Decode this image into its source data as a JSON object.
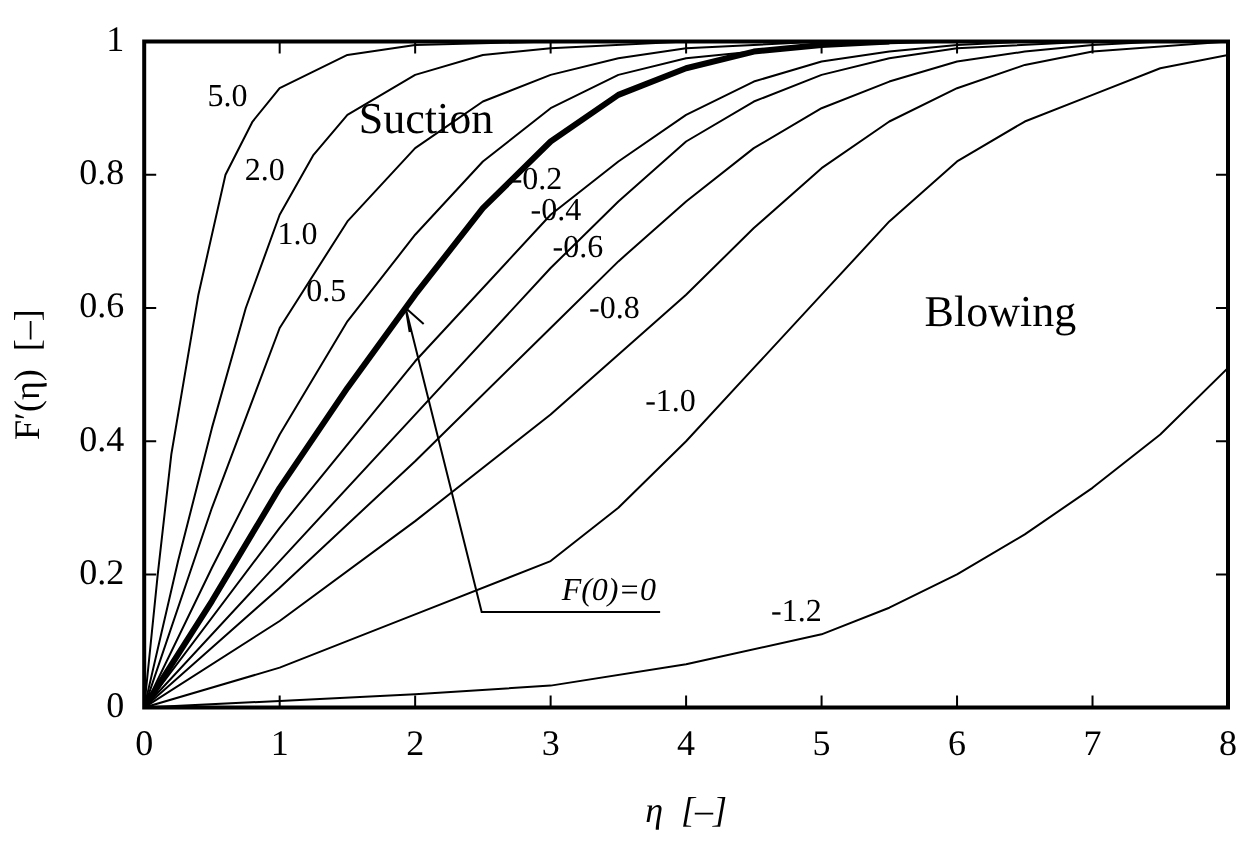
{
  "chart_data": {
    "type": "line",
    "xlabel": "η  [–]",
    "ylabel": "F′(η)  [–]",
    "xlim": [
      0,
      8
    ],
    "ylim": [
      0,
      1
    ],
    "xticks": [
      0,
      1,
      2,
      3,
      4,
      5,
      6,
      7,
      8
    ],
    "yticks": [
      0,
      0.2,
      0.4,
      0.6,
      0.8,
      1
    ],
    "grid": false,
    "legend": false,
    "marker": "none",
    "line_style": "solid",
    "series": [
      {
        "name": "5.0",
        "color": "#000000",
        "x": [
          0,
          0.1,
          0.2,
          0.4,
          0.6,
          0.8,
          1,
          1.5,
          2,
          3
        ],
        "values": [
          0,
          0.2,
          0.38,
          0.62,
          0.8,
          0.88,
          0.93,
          0.98,
          0.995,
          1
        ]
      },
      {
        "name": "2.0",
        "color": "#000000",
        "x": [
          0,
          0.25,
          0.5,
          0.75,
          1,
          1.25,
          1.5,
          2,
          2.5,
          3,
          4
        ],
        "values": [
          0,
          0.22,
          0.42,
          0.6,
          0.74,
          0.83,
          0.89,
          0.95,
          0.98,
          0.99,
          1
        ]
      },
      {
        "name": "1.0",
        "color": "#000000",
        "x": [
          0,
          0.5,
          1,
          1.5,
          2,
          2.5,
          3,
          3.5,
          4,
          5
        ],
        "values": [
          0,
          0.3,
          0.57,
          0.73,
          0.84,
          0.91,
          0.95,
          0.975,
          0.99,
          1
        ]
      },
      {
        "name": "0.5",
        "color": "#000000",
        "x": [
          0,
          0.5,
          1,
          1.5,
          2,
          2.5,
          3,
          3.5,
          4,
          5,
          6
        ],
        "values": [
          0,
          0.21,
          0.41,
          0.58,
          0.71,
          0.82,
          0.9,
          0.95,
          0.975,
          0.995,
          1
        ]
      },
      {
        "color": "#000000",
        "x": [
          0,
          0.5,
          1,
          1.5,
          2,
          2.5,
          3,
          3.5,
          4,
          4.5,
          5,
          5.5
        ],
        "values": [
          0,
          0.16,
          0.33,
          0.48,
          0.62,
          0.75,
          0.85,
          0.92,
          0.96,
          0.985,
          0.995,
          1
        ]
      },
      {
        "name": "-0.2",
        "color": "#000000",
        "x": [
          0,
          1,
          2,
          3,
          3.5,
          4,
          4.5,
          5,
          5.5,
          6,
          6.5
        ],
        "values": [
          0,
          0.27,
          0.52,
          0.74,
          0.82,
          0.89,
          0.94,
          0.97,
          0.985,
          0.995,
          1
        ]
      },
      {
        "name": "-0.4",
        "color": "#000000",
        "x": [
          0,
          1,
          2,
          3,
          3.5,
          4,
          4.5,
          5,
          5.5,
          6,
          7
        ],
        "values": [
          0,
          0.22,
          0.44,
          0.66,
          0.76,
          0.85,
          0.91,
          0.95,
          0.975,
          0.99,
          1
        ]
      },
      {
        "name": "-0.6",
        "color": "#000000",
        "x": [
          0,
          1,
          2,
          3,
          3.5,
          4,
          4.5,
          5,
          5.5,
          6,
          6.5,
          7,
          7.5
        ],
        "values": [
          0,
          0.18,
          0.37,
          0.57,
          0.67,
          0.76,
          0.84,
          0.9,
          0.94,
          0.97,
          0.985,
          0.995,
          1
        ]
      },
      {
        "name": "-0.8",
        "color": "#000000",
        "x": [
          0,
          1,
          2,
          3,
          4,
          4.5,
          5,
          5.5,
          6,
          6.5,
          7,
          8
        ],
        "values": [
          0,
          0.13,
          0.28,
          0.44,
          0.62,
          0.72,
          0.81,
          0.88,
          0.93,
          0.965,
          0.985,
          1
        ]
      },
      {
        "name": "-1.0",
        "color": "#000000",
        "x": [
          0,
          1,
          2,
          3,
          3.5,
          4,
          4.5,
          5,
          5.5,
          6,
          6.5,
          7,
          7.5,
          8
        ],
        "values": [
          0,
          0.06,
          0.14,
          0.22,
          0.3,
          0.4,
          0.51,
          0.62,
          0.73,
          0.82,
          0.88,
          0.92,
          0.96,
          0.98
        ]
      },
      {
        "name": "-1.2",
        "color": "#000000",
        "x": [
          0,
          1,
          2,
          3,
          4,
          5,
          5.5,
          6,
          6.5,
          7,
          7.5,
          8
        ],
        "values": [
          0,
          0.01,
          0.02,
          0.033,
          0.065,
          0.11,
          0.15,
          0.2,
          0.26,
          0.33,
          0.41,
          0.51
        ]
      }
    ],
    "annotations": [
      "Suction",
      "Blowing",
      {
        "text": "F(0)=0",
        "x": 1.93,
        "y": 0.6
      }
    ]
  }
}
